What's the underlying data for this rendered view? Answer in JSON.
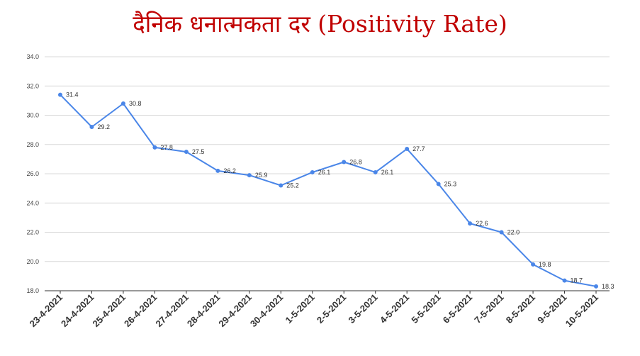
{
  "chart_data": {
    "type": "line",
    "title": "दैनिक धनात्मकता दर (Positivity Rate)",
    "categories": [
      "23-4-2021",
      "24-4-2021",
      "25-4-2021",
      "26-4-2021",
      "27-4-2021",
      "28-4-2021",
      "29-4-2021",
      "30-4-2021",
      "1-5-2021",
      "2-5-2021",
      "3-5-2021",
      "4-5-2021",
      "5-5-2021",
      "6-5-2021",
      "7-5-2021",
      "8-5-2021",
      "9-5-2021",
      "10-5-2021"
    ],
    "series": [
      {
        "values": [
          31.4,
          29.2,
          30.8,
          27.8,
          27.5,
          26.2,
          25.9,
          25.2,
          26.1,
          26.8,
          26.1,
          27.7,
          25.3,
          22.6,
          22.0,
          19.8,
          18.7,
          18.3
        ]
      }
    ],
    "ylim": [
      18.0,
      34.0
    ],
    "yticks": [
      "18.0",
      "20.0",
      "22.0",
      "24.0",
      "26.0",
      "28.0",
      "30.0",
      "32.0",
      "34.0"
    ],
    "grid": true,
    "xlabel": "",
    "ylabel": "",
    "line_color": "#4a86e8",
    "title_color": "#c00000"
  }
}
